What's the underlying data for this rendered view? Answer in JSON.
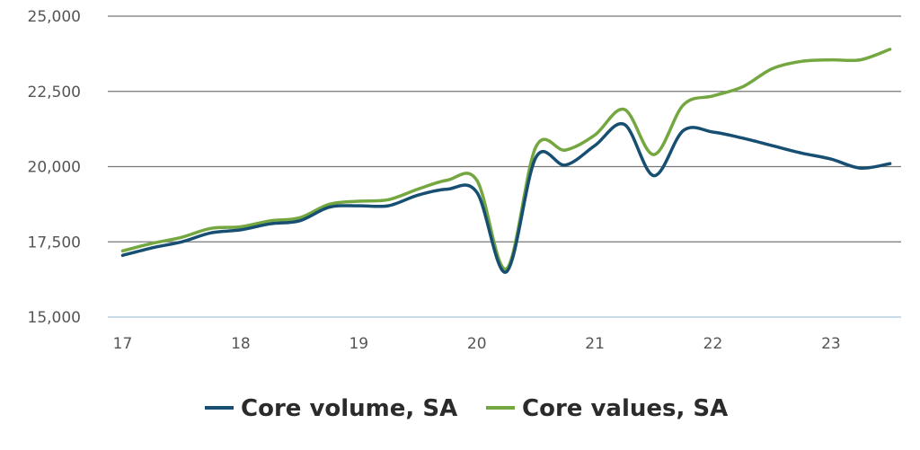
{
  "chart_data": {
    "type": "line",
    "title": "",
    "xlabel": "",
    "ylabel": "",
    "xlim": [
      17,
      23.6
    ],
    "ylim": [
      15000,
      25000
    ],
    "x_ticks": [
      17,
      18,
      19,
      20,
      21,
      22,
      23
    ],
    "x_tick_labels": [
      "17",
      "18",
      "19",
      "20",
      "21",
      "22",
      "23"
    ],
    "y_ticks": [
      15000,
      17500,
      20000,
      22500,
      25000
    ],
    "y_tick_labels": [
      "15,000",
      "17,500",
      "20,000",
      "22,500",
      "25,000"
    ],
    "grid": true,
    "legend": "bottom",
    "series": [
      {
        "name": "Core volume, SA",
        "color": "#164f72",
        "points": [
          [
            17.0,
            17050
          ],
          [
            17.25,
            17300
          ],
          [
            17.5,
            17500
          ],
          [
            17.75,
            17800
          ],
          [
            18.0,
            17900
          ],
          [
            18.25,
            18100
          ],
          [
            18.5,
            18200
          ],
          [
            18.75,
            18650
          ],
          [
            19.0,
            18700
          ],
          [
            19.25,
            18700
          ],
          [
            19.5,
            19050
          ],
          [
            19.75,
            19250
          ],
          [
            20.0,
            19150
          ],
          [
            20.25,
            16500
          ],
          [
            20.5,
            20300
          ],
          [
            20.75,
            20050
          ],
          [
            21.0,
            20700
          ],
          [
            21.25,
            21400
          ],
          [
            21.5,
            19700
          ],
          [
            21.75,
            21200
          ],
          [
            22.0,
            21150
          ],
          [
            22.25,
            20950
          ],
          [
            22.5,
            20700
          ],
          [
            22.75,
            20450
          ],
          [
            23.0,
            20250
          ],
          [
            23.25,
            19950
          ],
          [
            23.5,
            20100
          ]
        ]
      },
      {
        "name": "Core values, SA",
        "color": "#74a740",
        "points": [
          [
            17.0,
            17200
          ],
          [
            17.25,
            17450
          ],
          [
            17.5,
            17650
          ],
          [
            17.75,
            17950
          ],
          [
            18.0,
            18000
          ],
          [
            18.25,
            18200
          ],
          [
            18.5,
            18300
          ],
          [
            18.75,
            18750
          ],
          [
            19.0,
            18850
          ],
          [
            19.25,
            18900
          ],
          [
            19.5,
            19250
          ],
          [
            19.75,
            19550
          ],
          [
            20.0,
            19550
          ],
          [
            20.25,
            16600
          ],
          [
            20.5,
            20650
          ],
          [
            20.75,
            20550
          ],
          [
            21.0,
            21050
          ],
          [
            21.25,
            21900
          ],
          [
            21.5,
            20400
          ],
          [
            21.75,
            22050
          ],
          [
            22.0,
            22350
          ],
          [
            22.25,
            22650
          ],
          [
            22.5,
            23250
          ],
          [
            22.75,
            23500
          ],
          [
            23.0,
            23550
          ],
          [
            23.25,
            23550
          ],
          [
            23.5,
            23900
          ]
        ]
      }
    ]
  }
}
